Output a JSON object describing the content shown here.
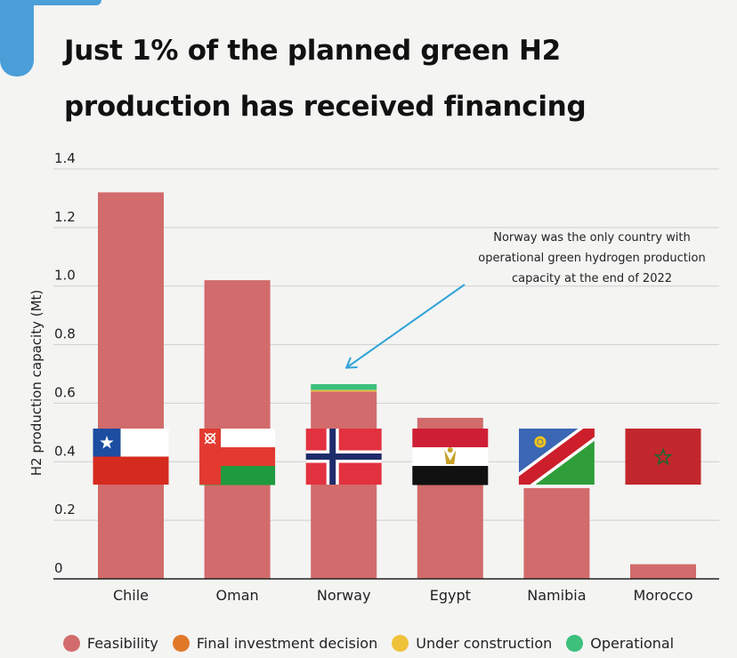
{
  "header": {
    "title": "Just 1% of the planned green H2 production has received financing"
  },
  "colors": {
    "feasibility": "#d26b6b",
    "final_investment_decision": "#e0782a",
    "under_construction": "#f0c23a",
    "operational": "#3cc07c",
    "arrow": "#2ea3d8",
    "accent": "#4a9fd8"
  },
  "annotation": {
    "lines": [
      "Norway was the only country with",
      "operational green hydrogen production",
      "capacity at the end of 2022"
    ]
  },
  "chart_data": {
    "type": "bar",
    "stacked": true,
    "categories": [
      "Chile",
      "Oman",
      "Norway",
      "Egypt",
      "Namibia",
      "Morocco"
    ],
    "series": [
      {
        "name": "Feasibility",
        "values": [
          1.32,
          1.02,
          0.64,
          0.55,
          0.31,
          0.05
        ]
      },
      {
        "name": "Final investment decision",
        "values": [
          0,
          0,
          0,
          0,
          0,
          0
        ]
      },
      {
        "name": "Under construction",
        "values": [
          0,
          0,
          0.005,
          0,
          0,
          0
        ]
      },
      {
        "name": "Operational",
        "values": [
          0,
          0,
          0.02,
          0,
          0,
          0
        ]
      }
    ],
    "ylabel": "H2 production capacity (Mt)",
    "xlabel": "",
    "ylim": [
      0,
      1.4
    ],
    "yticks": [
      0,
      0.2,
      0.4,
      0.6,
      0.8,
      1.0,
      1.2,
      1.4
    ],
    "ytick_labels": [
      "0",
      "0.2",
      "0.4",
      "0.6",
      "0.8",
      "1.0",
      "1.2",
      "1.4"
    ],
    "grid": true,
    "legend_position": "bottom",
    "flags": [
      "chile-flag",
      "oman-flag",
      "norway-flag",
      "egypt-flag",
      "namibia-flag",
      "morocco-flag"
    ]
  }
}
